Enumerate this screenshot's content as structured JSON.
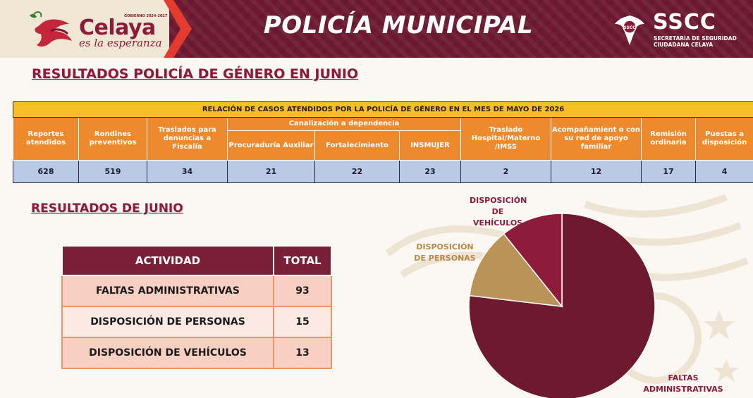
{
  "header": {
    "brand_word": "Celaya",
    "brand_tagline": "es la esperanza",
    "brand_small": "GOBIERNO 2024-2027",
    "title": "POLICÍA MUNICIPAL",
    "agency_acronym": "SSCC",
    "agency_name_line1": "SECRETARÍA DE SEGURIDAD",
    "agency_name_line2": "CIUDADANA CELAYA",
    "shield_text": "SSCC"
  },
  "section_gender": {
    "title": "RESULTADOS POLICÍA DE GÉNERO EN JUNIO",
    "table_caption": "RELACIÓN DE CASOS ATENDIDOS POR LA POLICÍA DE GÉNERO EN EL MES DE MAYO DE 2026",
    "headers": {
      "reportes": "Reportes atendidos",
      "rondines": "Rondines preventivos",
      "traslados": "Traslados para denuncias a Fiscalía",
      "canalizacion": "Canalización a dependencia",
      "procuraduria": "Procuraduría Auxiliar",
      "fortalecimiento": "Fortalecimiento",
      "insmujer": "INSMUJER",
      "hospital": "Traslado Hospital/Materno /IMSS",
      "acompanamiento": "Acompañamient o con su red de apoyo familiar",
      "remision": "Remisión ordinaria",
      "puestas": "Puestas a disposición"
    },
    "values": {
      "reportes": "628",
      "rondines": "519",
      "traslados": "34",
      "procuraduria": "21",
      "fortalecimiento": "22",
      "insmujer": "23",
      "hospital": "2",
      "acompanamiento": "12",
      "remision": "17",
      "puestas": "4"
    }
  },
  "section_results": {
    "title": "RESULTADOS DE JUNIO",
    "col_activity": "ACTIVIDAD",
    "col_total": "TOTAL",
    "rows": [
      {
        "activity": "FALTAS ADMINISTRATIVAS",
        "total": "93"
      },
      {
        "activity": "DISPOSICIÓN DE PERSONAS",
        "total": "15"
      },
      {
        "activity": "DISPOSICIÓN DE VEHÍCULOS",
        "total": "13"
      }
    ]
  },
  "pie": {
    "label_vehiculos_1": "DISPOSICIÓN",
    "label_vehiculos_2": "DE VEHÍCULOS",
    "label_personas_1": "DISPOSICIÓN",
    "label_personas_2": "DE PERSONAS",
    "label_faltas_1": "FALTAS",
    "label_faltas_2": "ADMINISTRATIVAS"
  },
  "chart_data": {
    "type": "pie",
    "categories": [
      "FALTAS ADMINISTRATIVAS",
      "DISPOSICIÓN DE PERSONAS",
      "DISPOSICIÓN DE VEHÍCULOS"
    ],
    "values": [
      93,
      15,
      13
    ],
    "colors": [
      "#6e1a2e",
      "#bb9258",
      "#8c1c3a"
    ],
    "title": "",
    "legend": "none"
  },
  "colors": {
    "banner": "#6e1a33",
    "accent_red": "#e43b2f",
    "title_maroon": "#8a1c3a",
    "table_gold": "#f5bf25",
    "table_orange": "#ee8a2e",
    "table_blue": "#b9c9e6",
    "activity_head": "#7a1f37"
  },
  "icons": {
    "brand": "celaya-bird-logo",
    "agency": "sscc-eagle-shield-icon"
  }
}
